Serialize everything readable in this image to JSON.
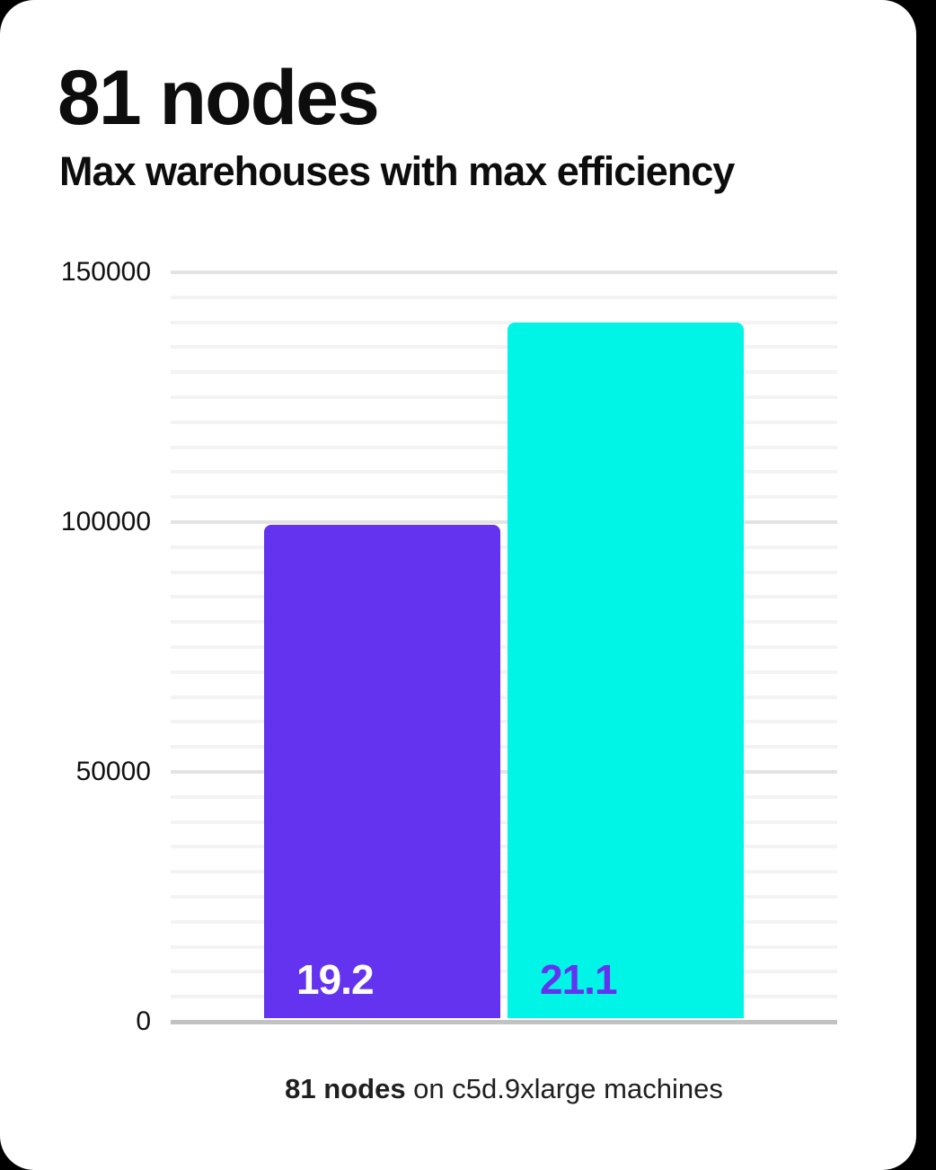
{
  "header": {
    "title": "81 nodes",
    "subtitle": "Max warehouses with max efficiency"
  },
  "caption": {
    "bold": "81 nodes",
    "rest": " on c5d.9xlarge machines"
  },
  "colors": {
    "page_background": "#000000",
    "card_background": "#FFFFFF",
    "title_text": "#0D0D0D",
    "tick_text": "#111111",
    "caption_text": "#1F1F1F",
    "purple": "#6433F0",
    "cyan": "#00F5E6",
    "gridline_minor": "#F3F3F3",
    "gridline_major": "#E3E3E3",
    "axis_baseline": "#C2C2C2"
  },
  "chart_data": {
    "type": "bar",
    "title": "81 nodes",
    "subtitle": "Max warehouses with max efficiency",
    "caption": "81 nodes on c5d.9xlarge machines",
    "categories": [
      "19.2",
      "21.1"
    ],
    "values": [
      99500,
      140000
    ],
    "bars": [
      {
        "label": "19.2",
        "value": 99500,
        "color": "#6433F0",
        "label_color": "#FFFFFF"
      },
      {
        "label": "21.1",
        "value": 140000,
        "color": "#00F5E6",
        "label_color": "#6433F0"
      }
    ],
    "xlabel": "",
    "ylabel": "",
    "ylim": [
      0,
      150000
    ],
    "yticks": [
      0,
      50000,
      100000,
      150000
    ],
    "ytick_labels": [
      "0",
      "50000",
      "100000",
      "150000"
    ],
    "minor_tick_step": 5000,
    "major_tick_step": 50000,
    "grid": true,
    "legend": "none"
  }
}
